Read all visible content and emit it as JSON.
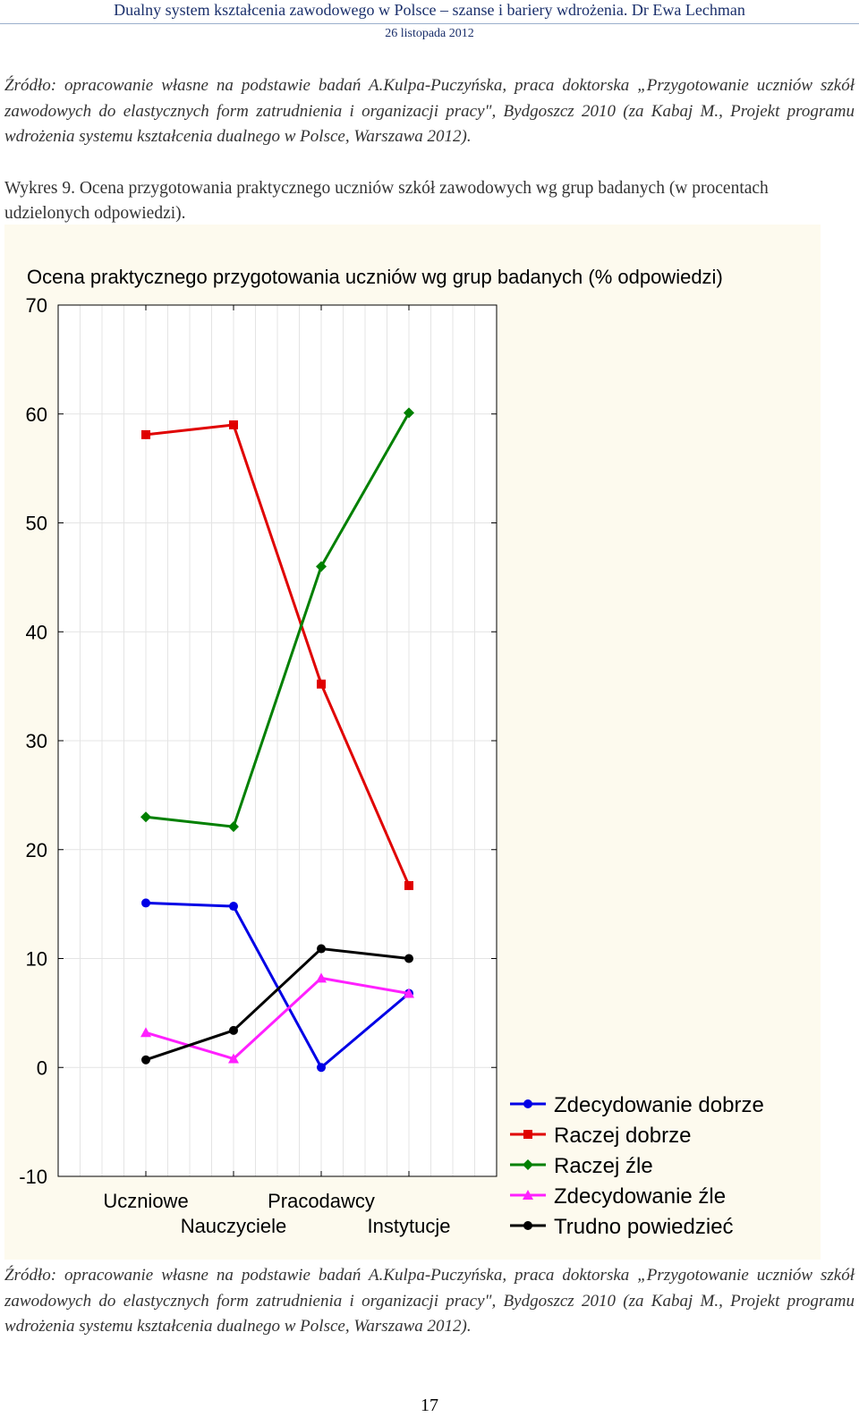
{
  "header": {
    "title": "Dualny system kształcenia zawodowego w Polsce – szanse i bariery wdrożenia. Dr Ewa Lechman",
    "date": "26 listopada 2012"
  },
  "source_top": "Źródło: opracowanie własne na podstawie badań A.Kulpa-Puczyńska, praca doktorska „Przygotowanie uczniów szkół zawodowych do elastycznych form zatrudnienia i organizacji pracy\", Bydgoszcz 2010 (za Kabaj M., Projekt programu wdrożenia systemu kształcenia dualnego w Polsce, Warszawa 2012).",
  "caption": "Wykres 9. Ocena przygotowania praktycznego uczniów szkół zawodowych wg grup badanych (w procentach udzielonych odpowiedzi).",
  "source_bottom": "Źródło: opracowanie własne na podstawie badań A.Kulpa-Puczyńska, praca doktorska „Przygotowanie uczniów szkół zawodowych do elastycznych form zatrudnienia i organizacji pracy\", Bydgoszcz 2010 (za Kabaj M., Projekt programu wdrożenia systemu kształcenia dualnego w Polsce, Warszawa 2012).",
  "page_number": "17",
  "chart_data": {
    "type": "line",
    "title": "Ocena praktycznego przygotowania uczniów wg grup badanych (% odpowiedzi)",
    "xlabel": "",
    "ylabel": "",
    "categories": [
      "Uczniowe",
      "Nauczyciele",
      "Pracodawcy",
      "Instytucje"
    ],
    "ylim": [
      -10,
      70
    ],
    "yticks": [
      -10,
      0,
      10,
      20,
      30,
      40,
      50,
      60,
      70
    ],
    "grid": true,
    "legend_position": "bottom-right",
    "series": [
      {
        "name": "Zdecydowanie dobrze",
        "color": "#0000e6",
        "marker": "circle",
        "values": [
          15.1,
          14.8,
          0.0,
          6.8
        ]
      },
      {
        "name": "Raczej dobrze",
        "color": "#e00000",
        "marker": "square",
        "values": [
          58.1,
          59.0,
          35.2,
          16.7
        ]
      },
      {
        "name": "Raczej źle",
        "color": "#008000",
        "marker": "diamond",
        "values": [
          23.0,
          22.1,
          46.0,
          60.1
        ]
      },
      {
        "name": "Zdecydowanie źle",
        "color": "#ff20ff",
        "marker": "triangle",
        "values": [
          3.2,
          0.8,
          8.2,
          6.8
        ]
      },
      {
        "name": "Trudno powiedzieć",
        "color": "#000000",
        "marker": "circle",
        "values": [
          0.7,
          3.4,
          10.9,
          10.0
        ]
      }
    ]
  }
}
